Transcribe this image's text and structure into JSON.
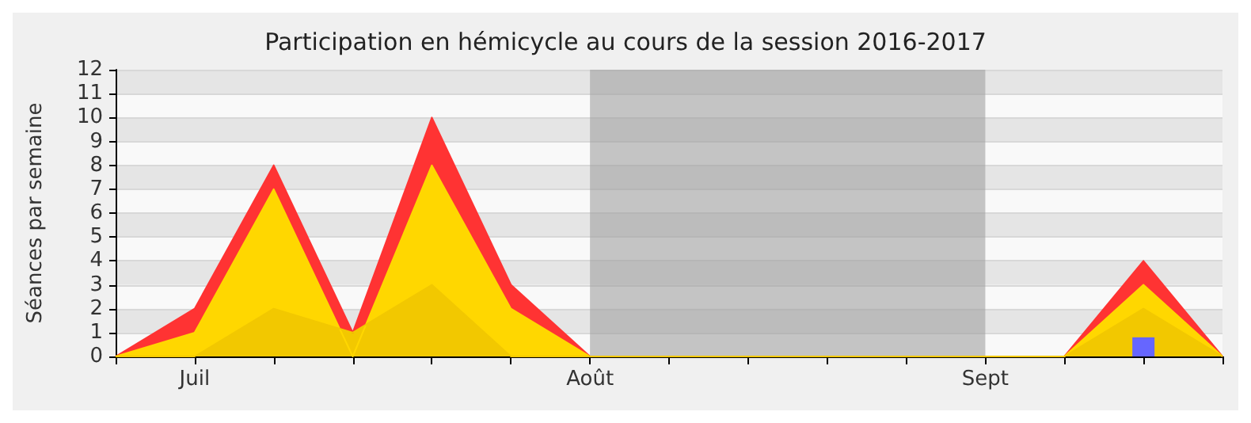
{
  "chart_data": {
    "type": "area",
    "title": "Participation en hémicycle au cours de la session 2016-2017",
    "ylabel": "Séances par semaine",
    "categories": [
      null,
      "Juil",
      null,
      null,
      null,
      null,
      "Août",
      null,
      null,
      null,
      null,
      "Sept",
      null,
      null,
      null
    ],
    "ylim": [
      0,
      12
    ],
    "yticks": [
      0,
      1,
      2,
      3,
      4,
      5,
      6,
      7,
      8,
      9,
      10,
      11,
      12
    ],
    "grid": "y",
    "series": [
      {
        "color": "#ff3333",
        "values": [
          0,
          2,
          8,
          1,
          10,
          3,
          0,
          0,
          0,
          0,
          0,
          0,
          0,
          4,
          0
        ]
      },
      {
        "color": "#ffd700",
        "values": [
          0,
          1,
          7,
          0,
          8,
          2,
          0,
          0,
          0,
          0,
          0,
          0,
          0,
          3,
          0
        ]
      },
      {
        "color": "#f2c800",
        "values": [
          0,
          0,
          2,
          1,
          3,
          0,
          0,
          0,
          0,
          0,
          0,
          0,
          0,
          2,
          0
        ]
      },
      {
        "type": "bar",
        "color": "#6666ff",
        "values": [
          null,
          null,
          null,
          null,
          null,
          null,
          null,
          null,
          null,
          null,
          null,
          null,
          null,
          0.8,
          null
        ]
      }
    ],
    "bands": [
      {
        "axis": "x",
        "from": "Août",
        "to": "Sept",
        "color": "#a0a0a0"
      }
    ]
  }
}
